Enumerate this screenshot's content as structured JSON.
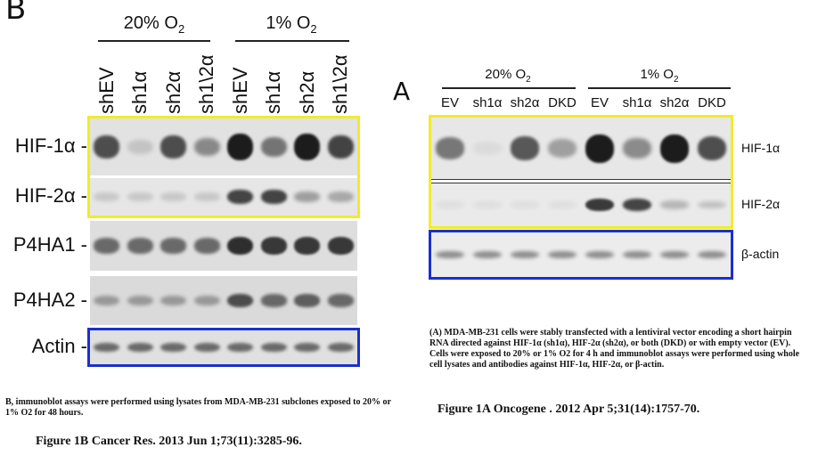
{
  "left_figure": {
    "panel_letter": "B",
    "conditions": [
      "20% O",
      "1% O"
    ],
    "subscript": "2",
    "lanes": [
      "shEV",
      "sh1α",
      "sh2α",
      "sh1\\2α",
      "shEV",
      "sh1α",
      "sh2α",
      "sh1\\2α"
    ],
    "blots": [
      {
        "label": "HIF-1α",
        "intensities": [
          0.75,
          0.15,
          0.75,
          0.45,
          1.0,
          0.55,
          1.0,
          0.8
        ]
      },
      {
        "label": "HIF-2α",
        "intensities": [
          0.15,
          0.15,
          0.15,
          0.15,
          0.8,
          0.8,
          0.35,
          0.3
        ]
      },
      {
        "label": "P4HA1",
        "intensities": [
          0.6,
          0.6,
          0.6,
          0.6,
          0.9,
          0.85,
          0.85,
          0.85
        ]
      },
      {
        "label": "P4HA2",
        "intensities": [
          0.35,
          0.35,
          0.35,
          0.35,
          0.75,
          0.6,
          0.65,
          0.6
        ]
      },
      {
        "label": "Actin",
        "intensities": [
          0.6,
          0.6,
          0.6,
          0.6,
          0.6,
          0.6,
          0.6,
          0.6
        ]
      }
    ],
    "caption": "B, immunoblot assays were performed using lysates from MDA-MB-231 subclones exposed to 20% or 1% O2 for 48 hours.",
    "title": "Figure 1B Cancer Res. 2013 Jun 1;73(11):3285-96."
  },
  "right_figure": {
    "panel_letter": "A",
    "conditions": [
      "20% O",
      "1% O"
    ],
    "subscript": "2",
    "lanes": [
      "EV",
      "sh1α",
      "sh2α",
      "DKD",
      "EV",
      "sh1α",
      "sh2α",
      "DKD"
    ],
    "blots": [
      {
        "label": "HIF-1α",
        "intensities": [
          0.55,
          0.05,
          0.7,
          0.35,
          1.0,
          0.45,
          1.0,
          0.75
        ]
      },
      {
        "label": "HIF-2α",
        "intensities": [
          0.05,
          0.05,
          0.05,
          0.05,
          0.85,
          0.8,
          0.25,
          0.2
        ]
      },
      {
        "label": "β-actin",
        "intensities": [
          0.45,
          0.45,
          0.45,
          0.45,
          0.45,
          0.45,
          0.45,
          0.45
        ]
      }
    ],
    "caption": "(A) MDA-MB-231 cells were stably transfected with a lentiviral vector encoding a short hairpin RNA directed against HIF-1α (sh1α), HIF-2α (sh2α), or both (DKD) or with empty vector (EV). Cells were exposed to 20% or 1% O2 for 4 h and immunoblot assays were performed using whole cell lysates and antibodies against HIF-1α, HIF-2α, or β-actin.",
    "title": "Figure 1A Oncogene . 2012 Apr 5;31(14):1757-70."
  },
  "colors": {
    "highlight": "#f0ec2a",
    "actin_frame": "#1a2fd0",
    "band": "#1c1c1c"
  }
}
